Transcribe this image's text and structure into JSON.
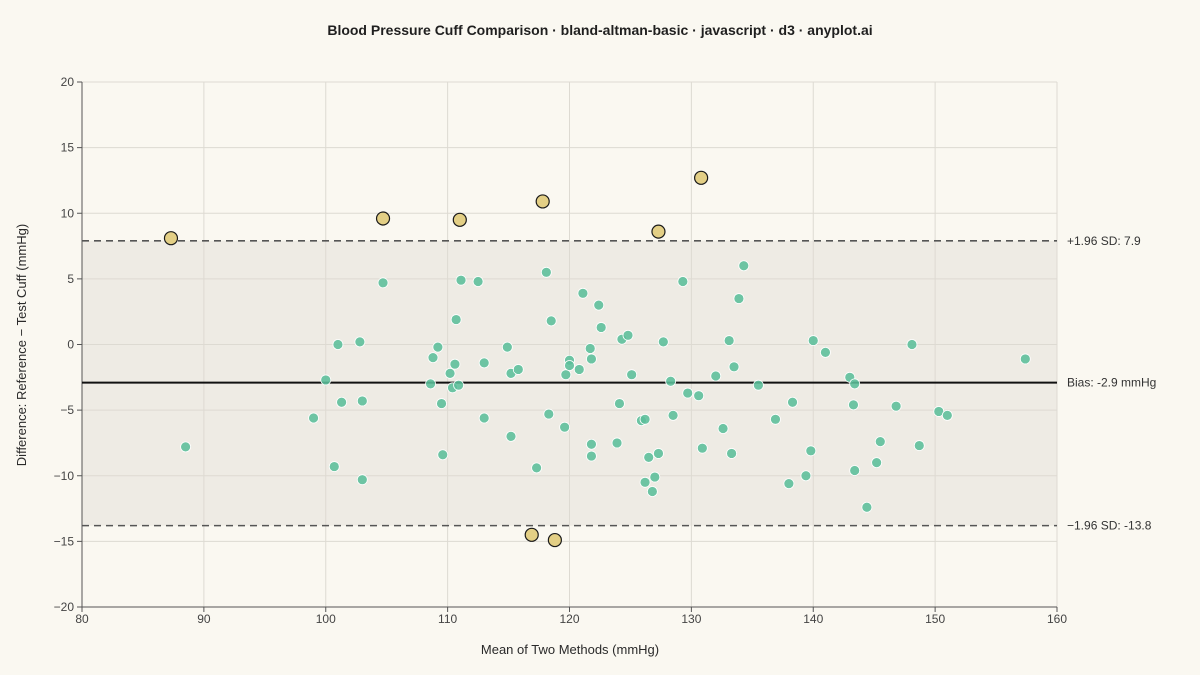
{
  "chart_data": {
    "type": "scatter",
    "title": "Blood Pressure Cuff Comparison · bland-altman-basic · javascript · d3 · anyplot.ai",
    "xlabel": "Mean of Two Methods (mmHg)",
    "ylabel": "Difference: Reference − Test Cuff (mmHg)",
    "xlim": [
      80,
      160
    ],
    "ylim": [
      -20,
      20
    ],
    "x_ticks": [
      80,
      90,
      100,
      110,
      120,
      130,
      140,
      150,
      160
    ],
    "y_ticks": [
      -20,
      -15,
      -10,
      -5,
      0,
      5,
      10,
      15,
      20
    ],
    "y_tick_labels": [
      "−20",
      "−15",
      "−10",
      "−5",
      "0",
      "5",
      "10",
      "15",
      "20"
    ],
    "grid": true,
    "bias": -2.9,
    "upper_loa": 7.9,
    "lower_loa": -13.8,
    "bias_label": "Bias: -2.9 mmHg",
    "upper_label": "+1.96 SD: 7.9",
    "lower_label": "−1.96 SD: -13.8",
    "colors": {
      "inlier": "#5BBE9A",
      "outlier": "#E3CF85",
      "band": "#EEEBE4",
      "bias_line": "#111111",
      "loa_line": "#555555",
      "background": "#FAF8F1"
    },
    "series": [
      {
        "points": [
          [
            88.5,
            -7.8
          ],
          [
            99.0,
            -5.6
          ],
          [
            100.0,
            -2.7
          ],
          [
            100.7,
            -9.3
          ],
          [
            101.0,
            0.0
          ],
          [
            101.3,
            -4.4
          ],
          [
            102.8,
            0.2
          ],
          [
            103.0,
            -4.3
          ],
          [
            103.0,
            -10.3
          ],
          [
            104.7,
            4.7
          ],
          [
            108.6,
            -3.0
          ],
          [
            108.8,
            -1.0
          ],
          [
            109.2,
            -0.2
          ],
          [
            109.5,
            -4.5
          ],
          [
            109.6,
            -8.4
          ],
          [
            110.2,
            -2.2
          ],
          [
            110.4,
            -3.3
          ],
          [
            110.6,
            -1.5
          ],
          [
            110.7,
            1.9
          ],
          [
            110.9,
            -3.1
          ],
          [
            111.1,
            4.9
          ],
          [
            112.5,
            4.8
          ],
          [
            113.0,
            -1.4
          ],
          [
            113.0,
            -5.6
          ],
          [
            114.9,
            -0.2
          ],
          [
            115.2,
            -2.2
          ],
          [
            115.2,
            -7.0
          ],
          [
            115.8,
            -1.9
          ],
          [
            117.3,
            -9.4
          ],
          [
            118.1,
            5.5
          ],
          [
            118.3,
            -5.3
          ],
          [
            118.5,
            1.8
          ],
          [
            119.6,
            -6.3
          ],
          [
            119.7,
            -2.3
          ],
          [
            120.0,
            -1.2
          ],
          [
            120.0,
            -1.6
          ],
          [
            120.8,
            -1.9
          ],
          [
            121.1,
            3.9
          ],
          [
            121.7,
            -0.3
          ],
          [
            121.8,
            -1.1
          ],
          [
            121.8,
            -7.6
          ],
          [
            121.8,
            -8.5
          ],
          [
            122.4,
            3.0
          ],
          [
            122.6,
            1.3
          ],
          [
            123.9,
            -7.5
          ],
          [
            124.1,
            -4.5
          ],
          [
            124.3,
            0.4
          ],
          [
            124.8,
            0.7
          ],
          [
            125.1,
            -2.3
          ],
          [
            125.9,
            -5.8
          ],
          [
            126.2,
            -5.7
          ],
          [
            126.2,
            -10.5
          ],
          [
            126.5,
            -8.6
          ],
          [
            126.8,
            -11.2
          ],
          [
            127.0,
            -10.1
          ],
          [
            127.3,
            -8.3
          ],
          [
            127.7,
            0.2
          ],
          [
            128.3,
            -2.8
          ],
          [
            128.5,
            -5.4
          ],
          [
            129.3,
            4.8
          ],
          [
            129.7,
            -3.7
          ],
          [
            130.6,
            -3.9
          ],
          [
            130.9,
            -7.9
          ],
          [
            132.0,
            -2.4
          ],
          [
            132.6,
            -6.4
          ],
          [
            133.1,
            0.3
          ],
          [
            133.3,
            -8.3
          ],
          [
            133.5,
            -1.7
          ],
          [
            133.9,
            3.5
          ],
          [
            134.3,
            6.0
          ],
          [
            135.5,
            -3.1
          ],
          [
            136.9,
            -5.7
          ],
          [
            138.0,
            -10.6
          ],
          [
            138.3,
            -4.4
          ],
          [
            139.4,
            -10.0
          ],
          [
            139.8,
            -8.1
          ],
          [
            140.0,
            0.3
          ],
          [
            141.0,
            -0.6
          ],
          [
            143.0,
            -2.5
          ],
          [
            143.3,
            -4.6
          ],
          [
            143.4,
            -3.0
          ],
          [
            143.4,
            -9.6
          ],
          [
            144.4,
            -12.4
          ],
          [
            145.2,
            -9.0
          ],
          [
            145.5,
            -7.4
          ],
          [
            146.8,
            -4.7
          ],
          [
            148.1,
            0.0
          ],
          [
            148.7,
            -7.7
          ],
          [
            150.3,
            -5.1
          ],
          [
            151.0,
            -5.4
          ],
          [
            157.4,
            -1.1
          ]
        ]
      },
      {
        "points": [
          [
            87.3,
            8.1
          ],
          [
            104.7,
            9.6
          ],
          [
            111.0,
            9.5
          ],
          [
            116.9,
            -14.5
          ],
          [
            117.8,
            10.9
          ],
          [
            118.8,
            -14.9
          ],
          [
            127.3,
            8.6
          ],
          [
            130.8,
            12.7
          ]
        ]
      }
    ]
  }
}
